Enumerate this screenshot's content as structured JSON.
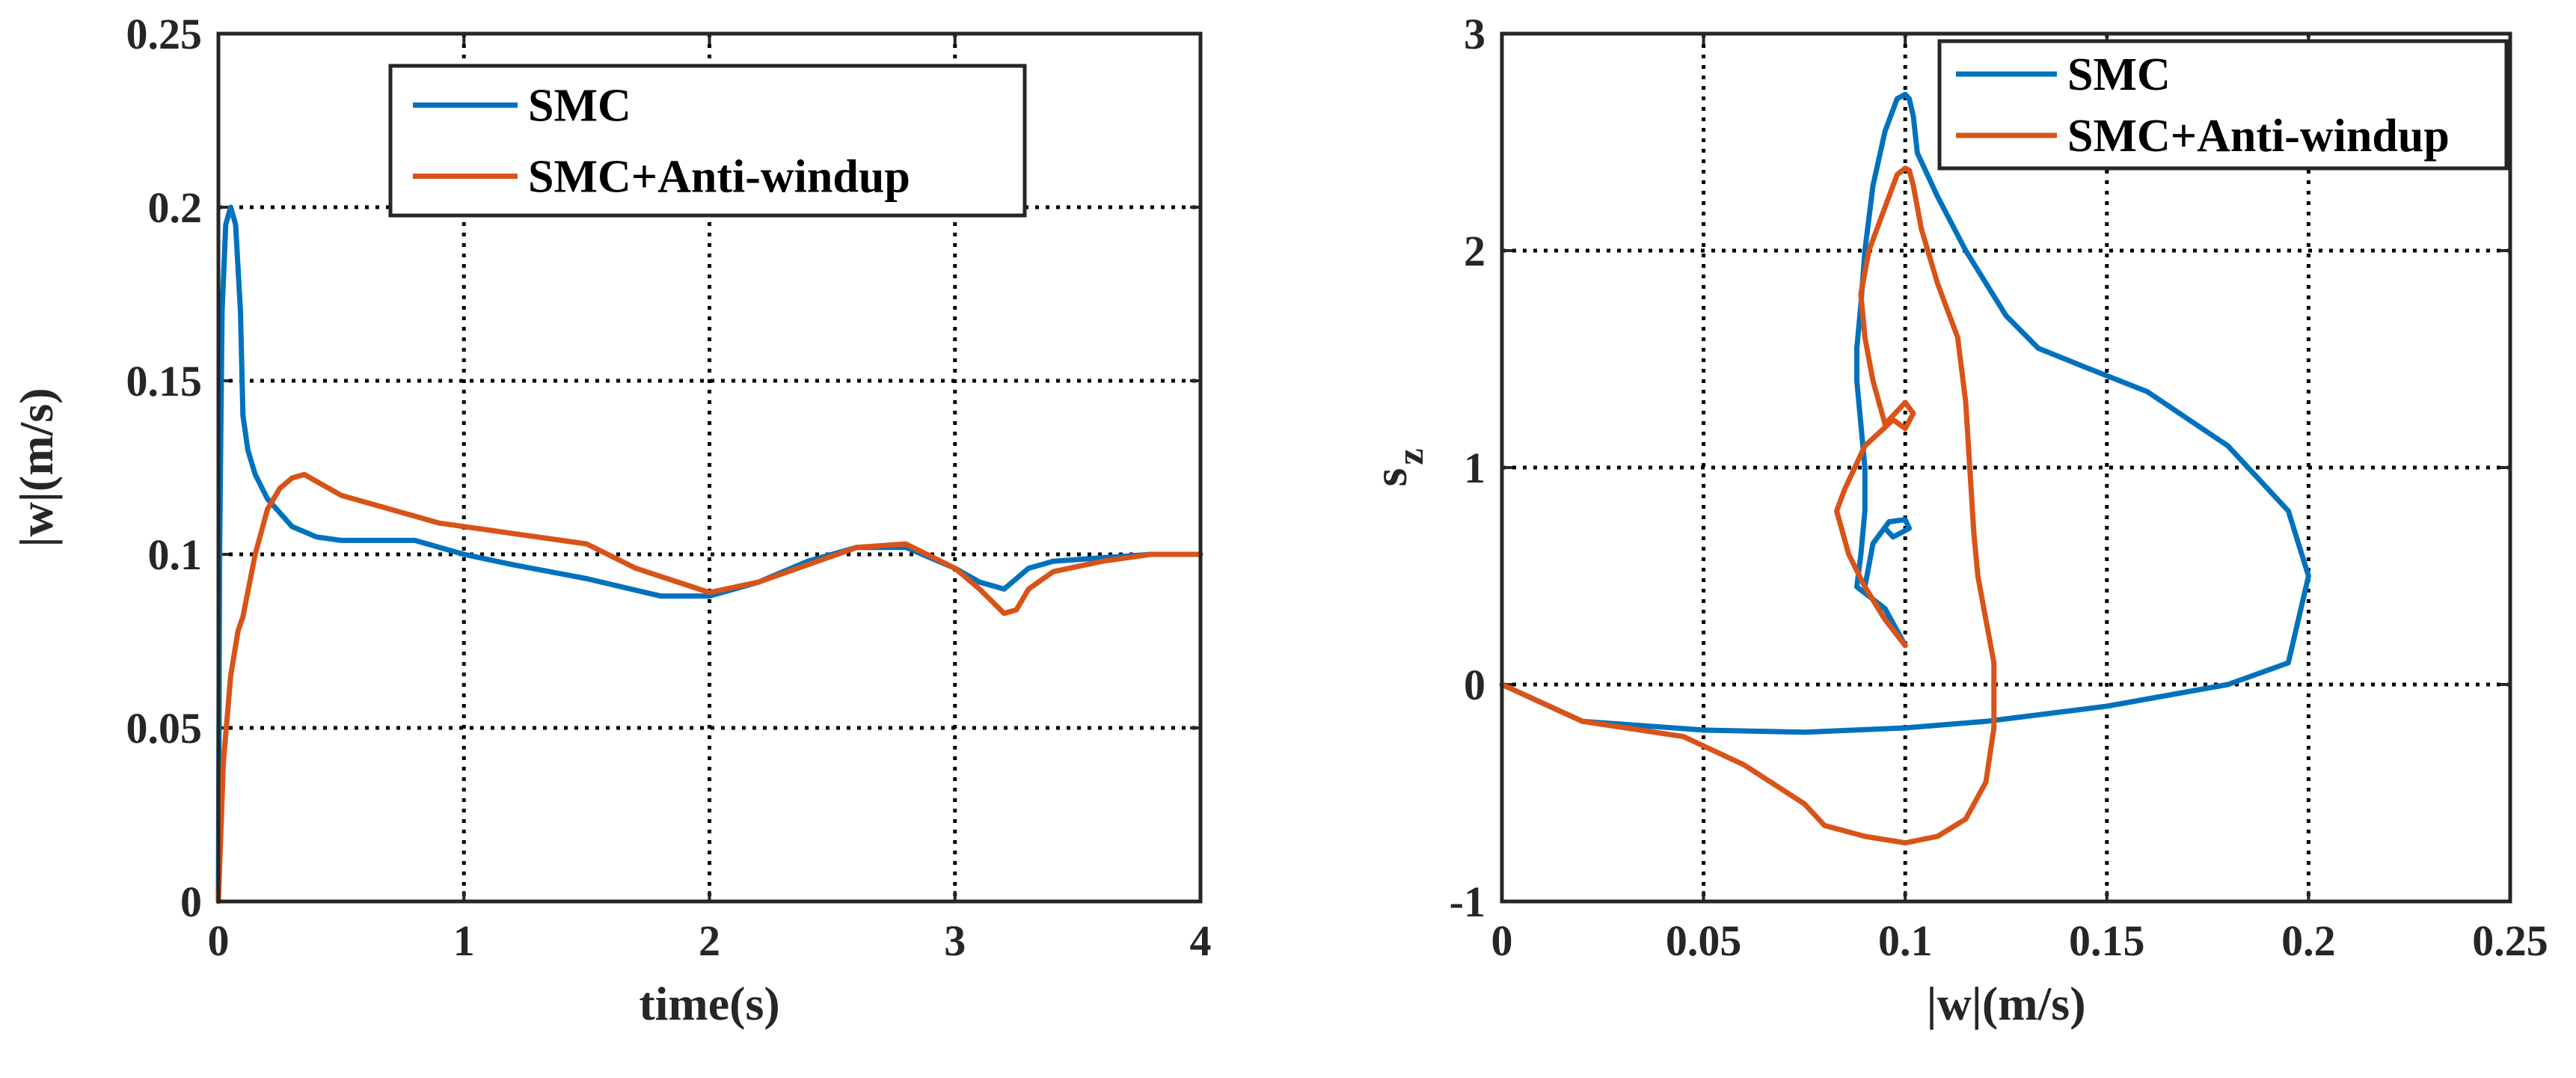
{
  "chart_data": [
    {
      "type": "line",
      "xlabel": "time(s)",
      "ylabel": "|w|(m/s)",
      "xlim": [
        0,
        4
      ],
      "ylim": [
        0,
        0.25
      ],
      "xticks": [
        "0",
        "1",
        "2",
        "3",
        "4"
      ],
      "yticks": [
        "0",
        "0.05",
        "0.1",
        "0.15",
        "0.2",
        "0.25"
      ],
      "grid": true,
      "legend_position": "top-center",
      "series": [
        {
          "name": "SMC",
          "color": "#0072BD",
          "points": [
            [
              0,
              0
            ],
            [
              0.005,
              0.1
            ],
            [
              0.015,
              0.17
            ],
            [
              0.03,
              0.195
            ],
            [
              0.05,
              0.2
            ],
            [
              0.07,
              0.195
            ],
            [
              0.09,
              0.17
            ],
            [
              0.1,
              0.14
            ],
            [
              0.12,
              0.13
            ],
            [
              0.15,
              0.123
            ],
            [
              0.2,
              0.116
            ],
            [
              0.3,
              0.108
            ],
            [
              0.4,
              0.105
            ],
            [
              0.5,
              0.104
            ],
            [
              0.6,
              0.104
            ],
            [
              0.8,
              0.104
            ],
            [
              1.0,
              0.1
            ],
            [
              1.2,
              0.097
            ],
            [
              1.5,
              0.093
            ],
            [
              1.8,
              0.088
            ],
            [
              2.0,
              0.088
            ],
            [
              2.2,
              0.092
            ],
            [
              2.4,
              0.098
            ],
            [
              2.6,
              0.102
            ],
            [
              2.8,
              0.102
            ],
            [
              3.0,
              0.096
            ],
            [
              3.1,
              0.092
            ],
            [
              3.2,
              0.09
            ],
            [
              3.25,
              0.093
            ],
            [
              3.3,
              0.096
            ],
            [
              3.4,
              0.098
            ],
            [
              3.6,
              0.099
            ],
            [
              3.8,
              0.1
            ],
            [
              4.0,
              0.1
            ]
          ]
        },
        {
          "name": "SMC+Anti-windup",
          "color": "#D95319",
          "points": [
            [
              0,
              0
            ],
            [
              0.02,
              0.04
            ],
            [
              0.05,
              0.065
            ],
            [
              0.08,
              0.078
            ],
            [
              0.1,
              0.082
            ],
            [
              0.15,
              0.1
            ],
            [
              0.2,
              0.113
            ],
            [
              0.25,
              0.119
            ],
            [
              0.3,
              0.122
            ],
            [
              0.35,
              0.123
            ],
            [
              0.4,
              0.121
            ],
            [
              0.5,
              0.117
            ],
            [
              0.7,
              0.113
            ],
            [
              0.9,
              0.109
            ],
            [
              1.2,
              0.106
            ],
            [
              1.5,
              0.103
            ],
            [
              1.7,
              0.096
            ],
            [
              2.0,
              0.089
            ],
            [
              2.2,
              0.092
            ],
            [
              2.4,
              0.097
            ],
            [
              2.6,
              0.102
            ],
            [
              2.8,
              0.103
            ],
            [
              3.0,
              0.096
            ],
            [
              3.1,
              0.09
            ],
            [
              3.2,
              0.083
            ],
            [
              3.25,
              0.084
            ],
            [
              3.3,
              0.09
            ],
            [
              3.4,
              0.095
            ],
            [
              3.6,
              0.098
            ],
            [
              3.8,
              0.1
            ],
            [
              4.0,
              0.1
            ]
          ]
        }
      ]
    },
    {
      "type": "line",
      "xlabel": "|w|(m/s)",
      "ylabel": "s_z",
      "ylabel_main": "s",
      "ylabel_sub": "z",
      "xlim": [
        0,
        0.25
      ],
      "ylim": [
        -1,
        3
      ],
      "xticks": [
        "0",
        "0.05",
        "0.1",
        "0.15",
        "0.2",
        "0.25"
      ],
      "yticks": [
        "-1",
        "0",
        "1",
        "2",
        "3"
      ],
      "grid": true,
      "legend_position": "top-right",
      "series": [
        {
          "name": "SMC",
          "color": "#0072BD",
          "points": [
            [
              0,
              0
            ],
            [
              0.02,
              -0.17
            ],
            [
              0.05,
              -0.21
            ],
            [
              0.075,
              -0.22
            ],
            [
              0.1,
              -0.2
            ],
            [
              0.12,
              -0.17
            ],
            [
              0.15,
              -0.1
            ],
            [
              0.18,
              0
            ],
            [
              0.195,
              0.1
            ],
            [
              0.2,
              0.5
            ],
            [
              0.195,
              0.8
            ],
            [
              0.18,
              1.1
            ],
            [
              0.16,
              1.35
            ],
            [
              0.145,
              1.46
            ],
            [
              0.133,
              1.55
            ],
            [
              0.125,
              1.7
            ],
            [
              0.115,
              2
            ],
            [
              0.108,
              2.25
            ],
            [
              0.103,
              2.45
            ],
            [
              0.102,
              2.62
            ],
            [
              0.101,
              2.7
            ],
            [
              0.1,
              2.72
            ],
            [
              0.098,
              2.7
            ],
            [
              0.095,
              2.55
            ],
            [
              0.092,
              2.3
            ],
            [
              0.09,
              2
            ],
            [
              0.089,
              1.75
            ],
            [
              0.088,
              1.55
            ],
            [
              0.088,
              1.4
            ],
            [
              0.089,
              1.2
            ],
            [
              0.09,
              1
            ],
            [
              0.09,
              0.8
            ],
            [
              0.089,
              0.6
            ],
            [
              0.088,
              0.45
            ],
            [
              0.095,
              0.35
            ],
            [
              0.1,
              0.18
            ],
            [
              0.095,
              0.3
            ],
            [
              0.09,
              0.45
            ],
            [
              0.092,
              0.65
            ],
            [
              0.096,
              0.75
            ],
            [
              0.1,
              0.76
            ],
            [
              0.101,
              0.72
            ],
            [
              0.097,
              0.68
            ],
            [
              0.095,
              0.72
            ]
          ]
        },
        {
          "name": "SMC+Anti-windup",
          "color": "#D95319",
          "points": [
            [
              0,
              0
            ],
            [
              0.02,
              -0.17
            ],
            [
              0.045,
              -0.24
            ],
            [
              0.06,
              -0.37
            ],
            [
              0.075,
              -0.55
            ],
            [
              0.08,
              -0.65
            ],
            [
              0.09,
              -0.7
            ],
            [
              0.1,
              -0.73
            ],
            [
              0.108,
              -0.7
            ],
            [
              0.115,
              -0.62
            ],
            [
              0.12,
              -0.45
            ],
            [
              0.122,
              -0.2
            ],
            [
              0.122,
              0.1
            ],
            [
              0.12,
              0.3
            ],
            [
              0.118,
              0.5
            ],
            [
              0.117,
              0.7
            ],
            [
              0.116,
              1
            ],
            [
              0.115,
              1.3
            ],
            [
              0.113,
              1.6
            ],
            [
              0.108,
              1.85
            ],
            [
              0.104,
              2.1
            ],
            [
              0.102,
              2.3
            ],
            [
              0.101,
              2.37
            ],
            [
              0.1,
              2.38
            ],
            [
              0.098,
              2.35
            ],
            [
              0.095,
              2.2
            ],
            [
              0.091,
              2
            ],
            [
              0.089,
              1.8
            ],
            [
              0.09,
              1.6
            ],
            [
              0.092,
              1.4
            ],
            [
              0.095,
              1.2
            ],
            [
              0.1,
              1.3
            ],
            [
              0.102,
              1.25
            ],
            [
              0.1,
              1.18
            ],
            [
              0.097,
              1.22
            ],
            [
              0.09,
              1.1
            ],
            [
              0.085,
              0.9
            ],
            [
              0.083,
              0.8
            ],
            [
              0.086,
              0.6
            ],
            [
              0.09,
              0.45
            ],
            [
              0.095,
              0.3
            ],
            [
              0.1,
              0.18
            ]
          ]
        }
      ]
    }
  ]
}
